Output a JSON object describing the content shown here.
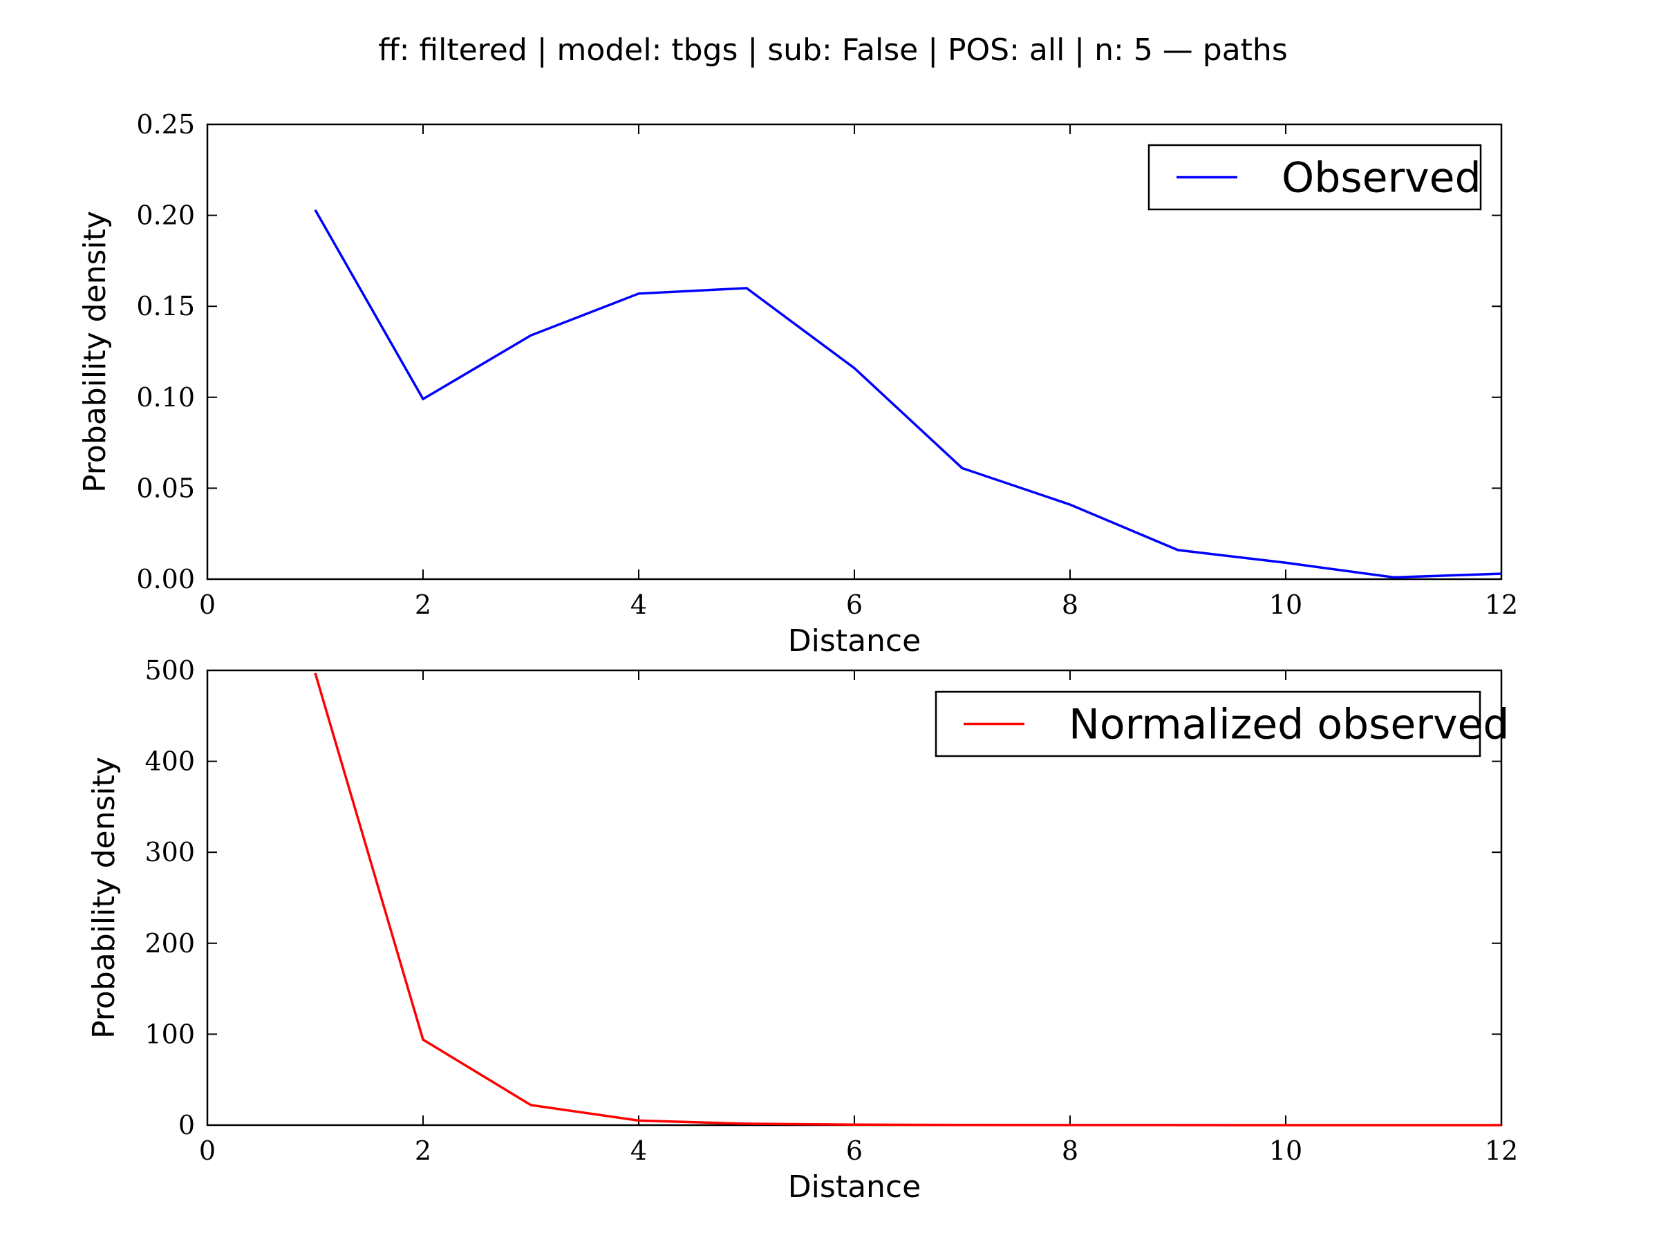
{
  "figure": {
    "title": "ff: filtered | model: tbgs | sub: False | POS: all | n: 5 — paths"
  },
  "chart_data": [
    {
      "type": "line",
      "title": "",
      "xlabel": "Distance",
      "ylabel": "Probability density",
      "xlim": [
        0,
        12
      ],
      "ylim": [
        0,
        0.25
      ],
      "xticks": [
        "0",
        "2",
        "4",
        "6",
        "8",
        "10",
        "12"
      ],
      "yticks": [
        "0.00",
        "0.05",
        "0.10",
        "0.15",
        "0.20",
        "0.25"
      ],
      "grid": false,
      "legend_position": "top-right",
      "series": [
        {
          "name": "Observed",
          "color": "#0000ff",
          "x": [
            1,
            2,
            3,
            4,
            5,
            6,
            7,
            8,
            9,
            10,
            11,
            12
          ],
          "values": [
            0.203,
            0.099,
            0.134,
            0.157,
            0.16,
            0.116,
            0.061,
            0.041,
            0.016,
            0.009,
            0.001,
            0.003
          ]
        }
      ]
    },
    {
      "type": "line",
      "title": "",
      "xlabel": "Distance",
      "ylabel": "Probability density",
      "xlim": [
        0,
        12
      ],
      "ylim": [
        0,
        500
      ],
      "xticks": [
        "0",
        "2",
        "4",
        "6",
        "8",
        "10",
        "12"
      ],
      "yticks": [
        "0",
        "100",
        "200",
        "300",
        "400",
        "500"
      ],
      "grid": false,
      "legend_position": "top-right",
      "series": [
        {
          "name": "Normalized observed",
          "color": "#ff0000",
          "x": [
            1,
            2,
            3,
            4,
            5,
            6,
            7,
            8,
            9,
            10,
            11,
            12
          ],
          "values": [
            497,
            94,
            22,
            5,
            1.5,
            0.5,
            0.2,
            0.1,
            0.05,
            0.02,
            0.01,
            0.01
          ]
        }
      ]
    }
  ]
}
